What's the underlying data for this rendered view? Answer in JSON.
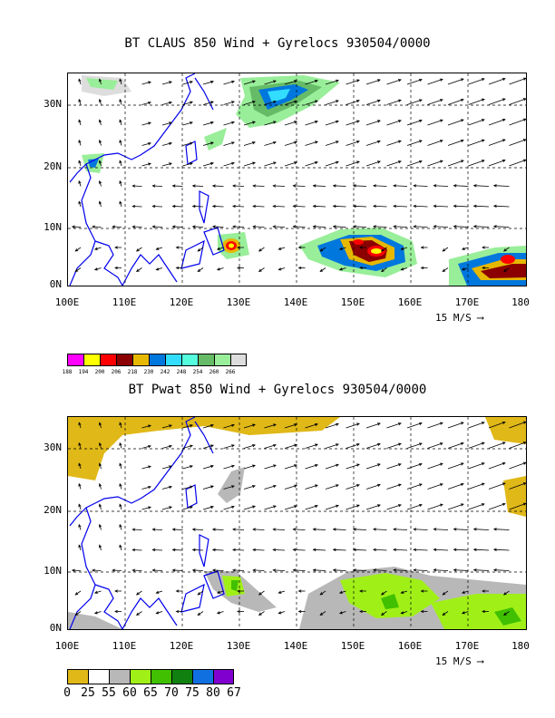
{
  "panels": [
    {
      "title": "BT CLAUS 850 Wind + Gyrelocs 930504/0000",
      "y_labels": [
        "30N",
        "20N",
        "10N",
        "0N"
      ],
      "x_labels": [
        "100E",
        "110E",
        "120E",
        "130E",
        "140E",
        "150E",
        "160E",
        "170E",
        "180"
      ],
      "vector_scale_label": "15 M/S",
      "colorbar_labels": [
        "188",
        "194",
        "200",
        "206",
        "218",
        "230",
        "242",
        "248",
        "254",
        "260",
        "266"
      ],
      "colorbar_colors": [
        "#ff00ff",
        "#ffff00",
        "#ff0000",
        "#8b0000",
        "#e6b800",
        "#0077dd",
        "#33ddff",
        "#55ffdd",
        "#66bb66",
        "#99ee99",
        "#dddddd"
      ]
    },
    {
      "title": "BT Pwat 850 Wind + Gyrelocs 930504/0000",
      "y_labels": [
        "30N",
        "20N",
        "10N",
        "0N"
      ],
      "x_labels": [
        "100E",
        "110E",
        "120E",
        "130E",
        "140E",
        "150E",
        "160E",
        "170E",
        "180"
      ],
      "vector_scale_label": "15 M/S",
      "colorbar_labels": [
        "0",
        "25",
        "55",
        "60",
        "65",
        "70",
        "75",
        "80",
        "67"
      ],
      "colorbar_colors": [
        "#e0b818",
        "#ffffff",
        "#b8b8b8",
        "#a0f018",
        "#40c000",
        "#108010",
        "#1070e0",
        "#8000d0"
      ]
    }
  ]
}
